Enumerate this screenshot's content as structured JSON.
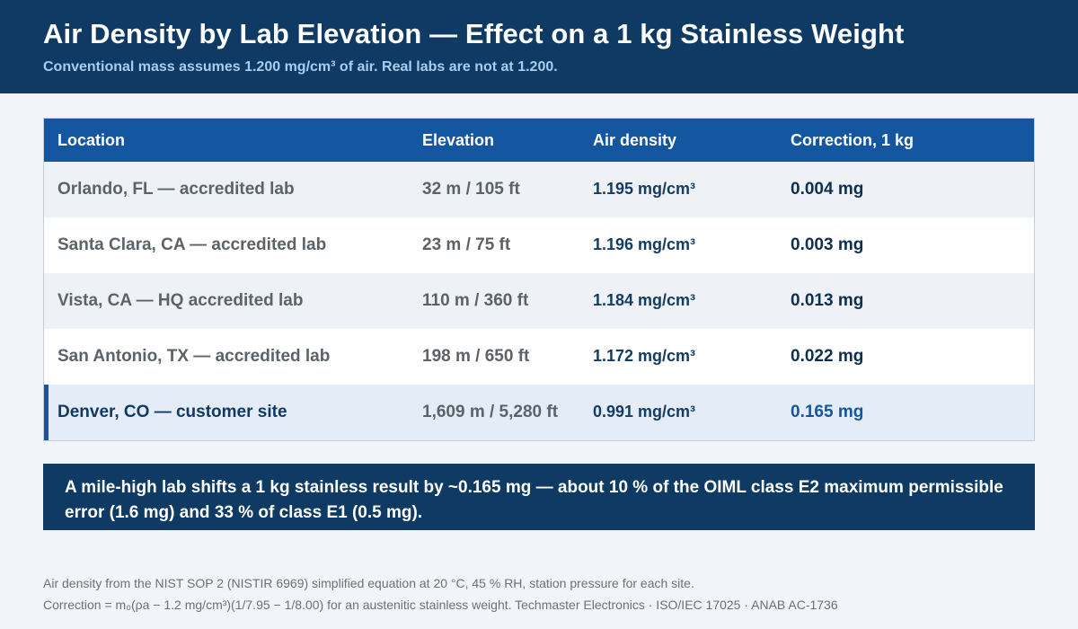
{
  "header": {
    "title": "Air Density by Lab Elevation — Effect on a 1 kg Stainless Weight",
    "subtitle": "Conventional mass assumes 1.200 mg/cm³ of air. Real labs are not at 1.200."
  },
  "table": {
    "columns": [
      "Location",
      "Elevation",
      "Air density",
      "Correction, 1 kg"
    ],
    "rows": [
      {
        "location": "Orlando, FL — accredited lab",
        "elevation": "32 m / 105 ft",
        "density": "1.195 mg/cm³",
        "correction": "0.004 mg"
      },
      {
        "location": "Santa Clara, CA — accredited lab",
        "elevation": "23 m / 75 ft",
        "density": "1.196 mg/cm³",
        "correction": "0.003 mg"
      },
      {
        "location": "Vista, CA — HQ accredited lab",
        "elevation": "110 m / 360 ft",
        "density": "1.184 mg/cm³",
        "correction": "0.013 mg"
      },
      {
        "location": "San Antonio, TX — accredited lab",
        "elevation": "198 m / 650 ft",
        "density": "1.172 mg/cm³",
        "correction": "0.022 mg"
      },
      {
        "location": "Denver, CO — customer site",
        "elevation": "1,609 m / 5,280 ft",
        "density": "0.991 mg/cm³",
        "correction": "0.165 mg"
      }
    ]
  },
  "callout": {
    "text": "A mile-high lab shifts a 1 kg stainless result by ~0.165 mg — about 10 % of the OIML class E2 maximum permissible error (1.6 mg) and 33 % of class E1 (0.5 mg)."
  },
  "footer": {
    "line1": "Air density from the NIST SOP 2 (NISTIR 6969) simplified equation at 20 °C, 45 % RH, station pressure for each site.",
    "line2": "Correction = m₀(ρa − 1.2 mg/cm³)(1/7.95 − 1/8.00) for an austenitic stainless weight.   Techmaster Electronics · ISO/IEC 17025 · ANAB AC-1736"
  },
  "colors": {
    "header_bg": "#0f3a63",
    "table_header_bg": "#1556a0",
    "accent": "#1556a0",
    "callout_bg": "#0f3a63"
  }
}
